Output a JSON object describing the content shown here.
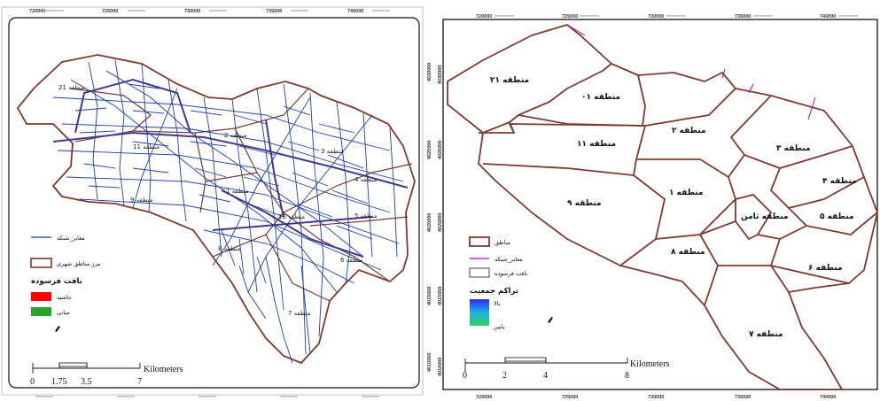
{
  "left_map": {
    "x_ticks": [
      "720000",
      "725000",
      "730000",
      "735000",
      "740000"
    ],
    "y_ticks": [
      "4030000",
      "4025000",
      "4020000",
      "4015000",
      "4010000"
    ],
    "region_labels": [
      "منطقه 1",
      "منطقه 2",
      "منطقه 3",
      "منطقه 4",
      "منطقه 5",
      "منطقه 6",
      "منطقه 7",
      "منطقه 8",
      "منطقه 9",
      "منطقه 10",
      "منطقه 11",
      "منطقه 21"
    ],
    "legend": {
      "network": "معابر_شبکه",
      "boundary": "مرز مناطق شهری",
      "fabric_title": "بافت فرسوده",
      "fringe": "حاشیه",
      "middle": "میانی"
    },
    "scale": {
      "unit": "Kilometers",
      "ticks": [
        "0",
        "1.75",
        "3.5",
        "7"
      ]
    },
    "colors": {
      "network": "#1f3f9f",
      "boundary": "#7b3b32",
      "fringe": "#ff0000",
      "middle": "#2ea02e"
    }
  },
  "right_map": {
    "x_ticks": [
      "720000",
      "725000",
      "730000",
      "735000",
      "740000"
    ],
    "y_ticks": [
      "4030000",
      "4025000",
      "4020000",
      "4015000",
      "4010000"
    ],
    "region_labels": [
      "منطقه ۲۱",
      "منطقه ۰۱",
      "منطقه ۱۱",
      "منطقه ۲",
      "منطقه ۳",
      "منطقه ۴",
      "منطقه ۵",
      "منطقه ۱",
      "منطقه ۹",
      "منطقه ثامن",
      "منطقه ۸",
      "منطقه ۶",
      "منطقه ۷"
    ],
    "legend": {
      "regions": "مناطق",
      "network": "معابر_شبکه",
      "fabric": "بافت فرسوده",
      "density_title": "تراکم جمعیت",
      "high": "بالا",
      "low": "پایین"
    },
    "scale": {
      "unit": "Kilometers",
      "ticks": [
        "0",
        "2",
        "4",
        "8"
      ]
    },
    "colors": {
      "boundary": "#7b3b32",
      "network": "#b000c0"
    }
  }
}
